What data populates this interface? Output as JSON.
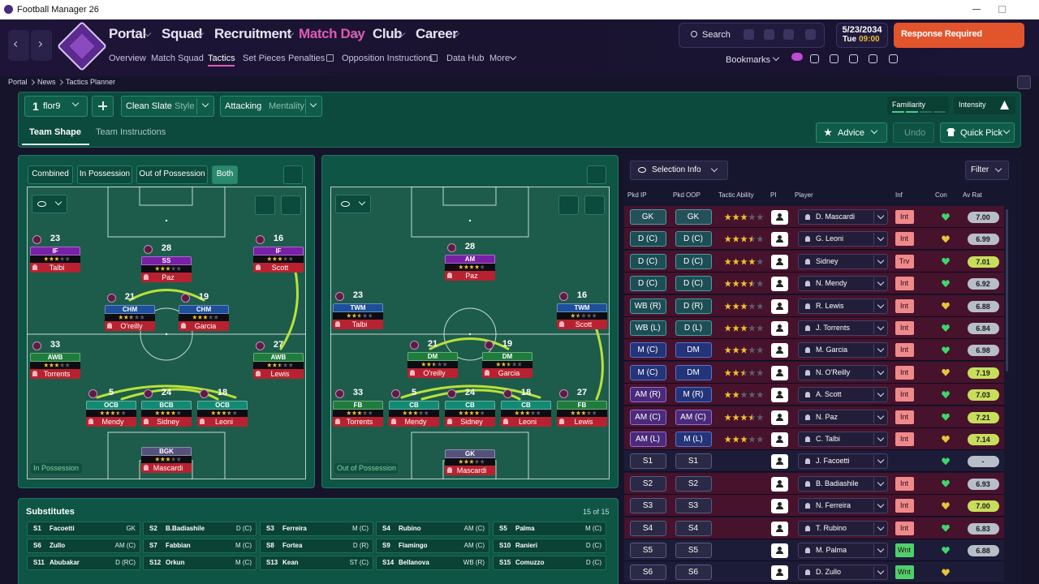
{
  "window": {
    "title": "Football Manager 26"
  },
  "nav": {
    "main": [
      "Portal",
      "Squad",
      "Recruitment",
      "Match Day",
      "Club",
      "Career"
    ],
    "sub": [
      "Overview",
      "Match Squad",
      "Tactics",
      "Set Pieces",
      "Penalties",
      "Opposition Instructions",
      "Data Hub",
      "More"
    ]
  },
  "header": {
    "search": "Search",
    "date": "5/23/2034",
    "day": "Tue",
    "time": "09:00",
    "response": "Response Required",
    "bookmarks": "Bookmarks"
  },
  "breadcrumb": [
    "Portal",
    "News",
    "Tactics Planner"
  ],
  "tactic": {
    "slot": "1",
    "name": "flor9",
    "style_value": "Clean Slate",
    "style_label": "Style",
    "mentality_value": "Attacking",
    "mentality_label": "Mentality",
    "familiarity": "Familiarity",
    "intensity": "Intensity"
  },
  "tabs": {
    "items": [
      "Team Shape",
      "Team Instructions"
    ],
    "advice": "Advice",
    "undo": "Undo",
    "quick_pick": "Quick Pick"
  },
  "pitches": [
    {
      "filters": [
        "Combined",
        "In Possession",
        "Out of Possession",
        "Both"
      ],
      "label": "In Possession",
      "players": [
        {
          "number": "23",
          "role": "IF",
          "name": "Talbi",
          "stars": 3
        },
        {
          "number": "28",
          "role": "SS",
          "name": "Paz",
          "stars": 3
        },
        {
          "number": "16",
          "role": "IF",
          "name": "Scott",
          "stars": 3
        },
        {
          "number": "21",
          "role": "CHM",
          "name": "O'reilly",
          "stars": 2.5
        },
        {
          "number": "19",
          "role": "CHM",
          "name": "Garcia",
          "stars": 3
        },
        {
          "number": "33",
          "role": "AWB",
          "name": "Torrents",
          "stars": 3
        },
        {
          "number": "27",
          "role": "AWB",
          "name": "Lewis",
          "stars": 2.5
        },
        {
          "number": "5",
          "role": "OCB",
          "name": "Mendy",
          "stars": 3.5
        },
        {
          "number": "24",
          "role": "BCB",
          "name": "Sidney",
          "stars": 4
        },
        {
          "number": "18",
          "role": "OCB",
          "name": "Leoni",
          "stars": 3.5
        },
        {
          "role": "BGK",
          "name": "Mascardi",
          "stars": 3
        }
      ]
    },
    {
      "label": "Out of Possession",
      "players": [
        {
          "number": "28",
          "role": "AM",
          "name": "Paz",
          "stars": 4
        },
        {
          "number": "23",
          "role": "TWM",
          "name": "Talbi",
          "stars": 2.5
        },
        {
          "number": "16",
          "role": "TWM",
          "name": "Scott",
          "stars": 1.5
        },
        {
          "number": "21",
          "role": "DM",
          "name": "O'reilly",
          "stars": 2.5
        },
        {
          "number": "19",
          "role": "DM",
          "name": "Garcia",
          "stars": 2.5
        },
        {
          "number": "33",
          "role": "FB",
          "name": "Torrents",
          "stars": 3
        },
        {
          "number": "5",
          "role": "CB",
          "name": "Mendy",
          "stars": 3
        },
        {
          "number": "24",
          "role": "CB",
          "name": "Sidney",
          "stars": 4
        },
        {
          "number": "18",
          "role": "CB",
          "name": "Leoni",
          "stars": 3
        },
        {
          "number": "27",
          "role": "FB",
          "name": "Lewis",
          "stars": 3
        },
        {
          "role": "GK",
          "name": "Mascardi",
          "stars": 3
        }
      ]
    }
  ],
  "substitutes": {
    "title": "Substitutes",
    "count": "15 of 15",
    "players": [
      {
        "slot": "S1",
        "name": "Facoetti",
        "position": "GK"
      },
      {
        "slot": "S2",
        "name": "B.Badiashile",
        "position": "D (C)"
      },
      {
        "slot": "S3",
        "name": "Ferreira",
        "position": "M (C)"
      },
      {
        "slot": "S4",
        "name": "Rubino",
        "position": "AM (C)"
      },
      {
        "slot": "S5",
        "name": "Palma",
        "position": "M (C)"
      },
      {
        "slot": "S6",
        "name": "Zullo",
        "position": "AM (C)"
      },
      {
        "slot": "S7",
        "name": "Fabbian",
        "position": "M (C)"
      },
      {
        "slot": "S8",
        "name": "Fortea",
        "position": "D (R)"
      },
      {
        "slot": "S9",
        "name": "Flamingo",
        "position": "AM (C)"
      },
      {
        "slot": "S10",
        "name": "Ranieri",
        "position": "D (C)"
      },
      {
        "slot": "S11",
        "name": "Abubakar",
        "position": "D (RC)"
      },
      {
        "slot": "S12",
        "name": "Orkun",
        "position": "M (C)"
      },
      {
        "slot": "S13",
        "name": "Kean",
        "position": "ST (C)"
      },
      {
        "slot": "S14",
        "name": "Bellanova",
        "position": "WB (R)"
      },
      {
        "slot": "S15",
        "name": "Comuzzo",
        "position": "D (C)"
      }
    ]
  },
  "selection": {
    "info": "Selection Info",
    "filter": "Filter",
    "columns": [
      "Pkd IP",
      "Pkd OOP",
      "Tactic Ability",
      "PI",
      "Player",
      "Inf",
      "Con",
      "Av Rat"
    ],
    "rows": [
      {
        "ip": "GK",
        "oop": "GK",
        "ability": 3,
        "player": "D. Mascardi",
        "inf": "Int",
        "rating": "7.00"
      },
      {
        "ip": "D (C)",
        "oop": "D (C)",
        "ability": 3.5,
        "player": "G. Leoni",
        "inf": "Int",
        "rating": "6.99"
      },
      {
        "ip": "D (C)",
        "oop": "D (C)",
        "ability": 4,
        "player": "Sidney",
        "inf": "Trv",
        "rating": "7.01"
      },
      {
        "ip": "D (C)",
        "oop": "D (C)",
        "ability": 3.5,
        "player": "N. Mendy",
        "inf": "Int",
        "rating": "6.92"
      },
      {
        "ip": "WB (R)",
        "oop": "D (R)",
        "ability": 3,
        "player": "R. Lewis",
        "inf": "Int",
        "rating": "6.88"
      },
      {
        "ip": "WB (L)",
        "oop": "D (L)",
        "ability": 3,
        "player": "J. Torrents",
        "inf": "Int",
        "rating": "6.84"
      },
      {
        "ip": "M (C)",
        "oop": "DM",
        "ability": 3,
        "player": "M. Garcia",
        "inf": "Int",
        "rating": "6.98"
      },
      {
        "ip": "M (C)",
        "oop": "DM",
        "ability": 2.5,
        "player": "N. O'Reilly",
        "inf": "Int",
        "rating": "7.19"
      },
      {
        "ip": "AM (R)",
        "oop": "M (R)",
        "ability": 2,
        "player": "A. Scott",
        "inf": "Int",
        "rating": "7.03"
      },
      {
        "ip": "AM (C)",
        "oop": "AM (C)",
        "ability": 3.5,
        "player": "N. Paz",
        "inf": "Int",
        "rating": "7.21"
      },
      {
        "ip": "AM (L)",
        "oop": "M (L)",
        "ability": 3,
        "player": "C. Talbi",
        "inf": "Int",
        "rating": "7.14"
      },
      {
        "ip": "S1",
        "oop": "S1",
        "player": "J. Facoetti",
        "rating": "-"
      },
      {
        "ip": "S2",
        "oop": "S2",
        "player": "B. Badiashile",
        "inf": "Int",
        "rating": "6.93"
      },
      {
        "ip": "S3",
        "oop": "S3",
        "player": "N. Ferreira",
        "inf": "Int",
        "rating": "7.00"
      },
      {
        "ip": "S4",
        "oop": "S4",
        "player": "T. Rubino",
        "inf": "Int",
        "rating": "6.83"
      },
      {
        "ip": "S5",
        "oop": "S5",
        "player": "M. Palma",
        "inf": "Wnt",
        "rating": "6.88"
      },
      {
        "ip": "S6",
        "oop": "S6",
        "player": "D. Zullo",
        "inf": "Wnt"
      }
    ]
  }
}
